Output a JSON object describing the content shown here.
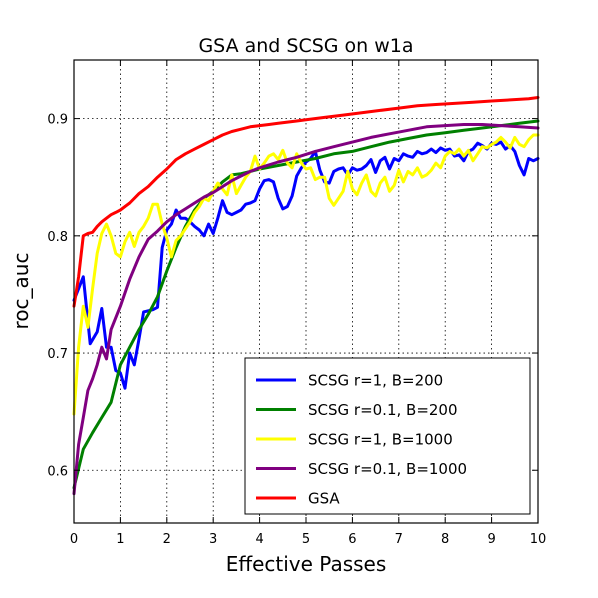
{
  "chart_data": {
    "type": "line",
    "title": "GSA and SCSG on w1a",
    "xlabel": "Effective Passes",
    "ylabel": "roc_auc",
    "xlim": [
      0,
      10
    ],
    "ylim": [
      0.555,
      0.95
    ],
    "xticks": [
      0,
      1,
      2,
      3,
      4,
      5,
      6,
      7,
      8,
      9,
      10
    ],
    "yticks": [
      0.6,
      0.7,
      0.8,
      0.9
    ],
    "ytick_labels": [
      "0.6",
      "0.7",
      "0.8",
      "0.9"
    ],
    "grid": true,
    "legend_position": "lower-right",
    "series": [
      {
        "name": "SCSG r=1, B=200",
        "color": "#0000ff",
        "x": [
          0,
          0.2,
          0.35,
          0.5,
          0.6,
          0.7,
          0.8,
          0.9,
          1.0,
          1.1,
          1.2,
          1.3,
          1.4,
          1.5,
          1.6,
          1.7,
          1.8,
          1.9,
          2.0,
          2.1,
          2.2,
          2.3,
          2.4,
          2.5,
          2.6,
          2.7,
          2.8,
          2.9,
          3.0,
          3.1,
          3.2,
          3.3,
          3.4,
          3.5,
          3.6,
          3.7,
          3.8,
          3.9,
          4.0,
          4.1,
          4.2,
          4.3,
          4.4,
          4.5,
          4.6,
          4.7,
          4.8,
          4.9,
          5.0,
          5.1,
          5.2,
          5.3,
          5.4,
          5.5,
          5.6,
          5.7,
          5.8,
          5.9,
          6.0,
          6.1,
          6.2,
          6.3,
          6.4,
          6.5,
          6.6,
          6.7,
          6.8,
          6.9,
          7.0,
          7.1,
          7.2,
          7.3,
          7.4,
          7.5,
          7.6,
          7.7,
          7.8,
          7.9,
          8.0,
          8.1,
          8.2,
          8.3,
          8.4,
          8.5,
          8.6,
          8.7,
          8.8,
          8.9,
          9.0,
          9.1,
          9.2,
          9.3,
          9.4,
          9.5,
          9.6,
          9.7,
          9.8,
          9.9,
          10.0
        ],
        "y": [
          0.745,
          0.765,
          0.708,
          0.718,
          0.738,
          0.705,
          0.705,
          0.685,
          0.683,
          0.67,
          0.7,
          0.69,
          0.712,
          0.735,
          0.736,
          0.737,
          0.739,
          0.79,
          0.805,
          0.81,
          0.822,
          0.815,
          0.815,
          0.812,
          0.808,
          0.805,
          0.8,
          0.81,
          0.802,
          0.815,
          0.83,
          0.82,
          0.818,
          0.82,
          0.822,
          0.827,
          0.828,
          0.83,
          0.84,
          0.847,
          0.848,
          0.846,
          0.832,
          0.823,
          0.825,
          0.834,
          0.851,
          0.858,
          0.863,
          0.866,
          0.872,
          0.856,
          0.846,
          0.845,
          0.855,
          0.857,
          0.858,
          0.852,
          0.858,
          0.856,
          0.857,
          0.86,
          0.865,
          0.854,
          0.864,
          0.867,
          0.857,
          0.866,
          0.864,
          0.87,
          0.868,
          0.867,
          0.872,
          0.87,
          0.871,
          0.874,
          0.871,
          0.875,
          0.873,
          0.874,
          0.868,
          0.869,
          0.864,
          0.872,
          0.874,
          0.879,
          0.877,
          0.874,
          0.879,
          0.878,
          0.88,
          0.874,
          0.877,
          0.872,
          0.86,
          0.852,
          0.866,
          0.864,
          0.866
        ]
      },
      {
        "name": "SCSG r=0.1, B=200",
        "color": "#008000",
        "x": [
          0,
          0.2,
          0.4,
          0.6,
          0.8,
          1.0,
          1.2,
          1.4,
          1.6,
          1.8,
          2.0,
          2.2,
          2.4,
          2.6,
          2.8,
          3.0,
          3.2,
          3.4,
          3.6,
          3.8,
          4.0,
          4.4,
          4.8,
          5.2,
          5.6,
          6.0,
          6.4,
          6.8,
          7.2,
          7.6,
          8.0,
          8.4,
          8.8,
          9.2,
          9.6,
          10.0
        ],
        "y": [
          0.585,
          0.618,
          0.632,
          0.645,
          0.658,
          0.69,
          0.705,
          0.72,
          0.733,
          0.748,
          0.77,
          0.79,
          0.808,
          0.822,
          0.832,
          0.838,
          0.846,
          0.852,
          0.853,
          0.855,
          0.857,
          0.86,
          0.863,
          0.866,
          0.87,
          0.872,
          0.876,
          0.88,
          0.883,
          0.886,
          0.888,
          0.89,
          0.892,
          0.894,
          0.896,
          0.898
        ]
      },
      {
        "name": "SCSG r=1, B=1000",
        "color": "#ffff00",
        "x": [
          0,
          0.1,
          0.2,
          0.3,
          0.4,
          0.5,
          0.6,
          0.7,
          0.8,
          0.9,
          1.0,
          1.1,
          1.2,
          1.3,
          1.4,
          1.5,
          1.6,
          1.7,
          1.8,
          1.9,
          2.0,
          2.1,
          2.2,
          2.3,
          2.4,
          2.5,
          2.6,
          2.7,
          2.8,
          2.9,
          3.0,
          3.1,
          3.2,
          3.3,
          3.4,
          3.5,
          3.6,
          3.7,
          3.8,
          3.9,
          4.0,
          4.1,
          4.2,
          4.3,
          4.4,
          4.5,
          4.6,
          4.7,
          4.8,
          4.9,
          5.0,
          5.1,
          5.2,
          5.3,
          5.4,
          5.5,
          5.6,
          5.7,
          5.8,
          5.9,
          6.0,
          6.1,
          6.2,
          6.3,
          6.4,
          6.5,
          6.6,
          6.7,
          6.8,
          6.9,
          7.0,
          7.1,
          7.2,
          7.3,
          7.4,
          7.5,
          7.6,
          7.7,
          7.8,
          7.9,
          8.0,
          8.1,
          8.2,
          8.3,
          8.4,
          8.5,
          8.6,
          8.7,
          8.8,
          8.9,
          9.0,
          9.1,
          9.2,
          9.3,
          9.4,
          9.5,
          9.6,
          9.7,
          9.8,
          9.9,
          10.0
        ],
        "y": [
          0.648,
          0.705,
          0.74,
          0.722,
          0.755,
          0.785,
          0.802,
          0.81,
          0.8,
          0.785,
          0.782,
          0.795,
          0.803,
          0.791,
          0.803,
          0.808,
          0.815,
          0.827,
          0.827,
          0.81,
          0.798,
          0.782,
          0.796,
          0.8,
          0.806,
          0.812,
          0.82,
          0.825,
          0.832,
          0.83,
          0.838,
          0.845,
          0.84,
          0.835,
          0.852,
          0.836,
          0.843,
          0.85,
          0.855,
          0.868,
          0.857,
          0.862,
          0.868,
          0.87,
          0.865,
          0.873,
          0.862,
          0.858,
          0.87,
          0.862,
          0.857,
          0.858,
          0.848,
          0.85,
          0.85,
          0.832,
          0.826,
          0.832,
          0.838,
          0.855,
          0.84,
          0.835,
          0.845,
          0.852,
          0.838,
          0.834,
          0.845,
          0.85,
          0.838,
          0.843,
          0.856,
          0.846,
          0.855,
          0.852,
          0.858,
          0.85,
          0.852,
          0.856,
          0.862,
          0.858,
          0.868,
          0.872,
          0.87,
          0.874,
          0.868,
          0.873,
          0.864,
          0.87,
          0.876,
          0.875,
          0.878,
          0.88,
          0.884,
          0.88,
          0.875,
          0.884,
          0.878,
          0.876,
          0.882,
          0.886,
          0.886
        ]
      },
      {
        "name": "SCSG r=0.1, B=1000",
        "color": "#800080",
        "x": [
          0,
          0.1,
          0.2,
          0.3,
          0.4,
          0.5,
          0.6,
          0.7,
          0.8,
          1.0,
          1.2,
          1.4,
          1.6,
          1.8,
          2.0,
          2.2,
          2.4,
          2.6,
          2.8,
          3.0,
          3.2,
          3.4,
          3.6,
          3.8,
          4.0,
          4.4,
          4.8,
          5.2,
          5.6,
          6.0,
          6.4,
          6.8,
          7.2,
          7.6,
          8.0,
          8.4,
          8.8,
          9.2,
          9.6,
          10.0
        ],
        "y": [
          0.58,
          0.622,
          0.645,
          0.668,
          0.678,
          0.69,
          0.705,
          0.695,
          0.72,
          0.74,
          0.763,
          0.782,
          0.797,
          0.804,
          0.812,
          0.818,
          0.823,
          0.828,
          0.833,
          0.837,
          0.842,
          0.847,
          0.851,
          0.855,
          0.858,
          0.863,
          0.867,
          0.872,
          0.876,
          0.88,
          0.884,
          0.887,
          0.89,
          0.893,
          0.894,
          0.895,
          0.895,
          0.894,
          0.893,
          0.892
        ]
      },
      {
        "name": "GSA",
        "color": "#ff0000",
        "x": [
          0,
          0.1,
          0.2,
          0.3,
          0.4,
          0.5,
          0.6,
          0.7,
          0.8,
          0.9,
          1.0,
          1.2,
          1.4,
          1.6,
          1.8,
          2.0,
          2.2,
          2.4,
          2.6,
          2.8,
          3.0,
          3.2,
          3.4,
          3.6,
          3.8,
          4.0,
          4.2,
          4.4,
          4.6,
          4.8,
          5.0,
          5.4,
          5.8,
          6.2,
          6.6,
          7.0,
          7.4,
          7.8,
          8.2,
          8.6,
          9.0,
          9.4,
          9.8,
          10.0
        ],
        "y": [
          0.74,
          0.765,
          0.8,
          0.802,
          0.803,
          0.808,
          0.812,
          0.815,
          0.818,
          0.82,
          0.822,
          0.828,
          0.836,
          0.842,
          0.85,
          0.857,
          0.865,
          0.87,
          0.874,
          0.878,
          0.882,
          0.886,
          0.889,
          0.891,
          0.893,
          0.894,
          0.895,
          0.896,
          0.897,
          0.898,
          0.899,
          0.901,
          0.903,
          0.905,
          0.907,
          0.909,
          0.911,
          0.912,
          0.913,
          0.914,
          0.915,
          0.916,
          0.917,
          0.918
        ]
      }
    ]
  }
}
